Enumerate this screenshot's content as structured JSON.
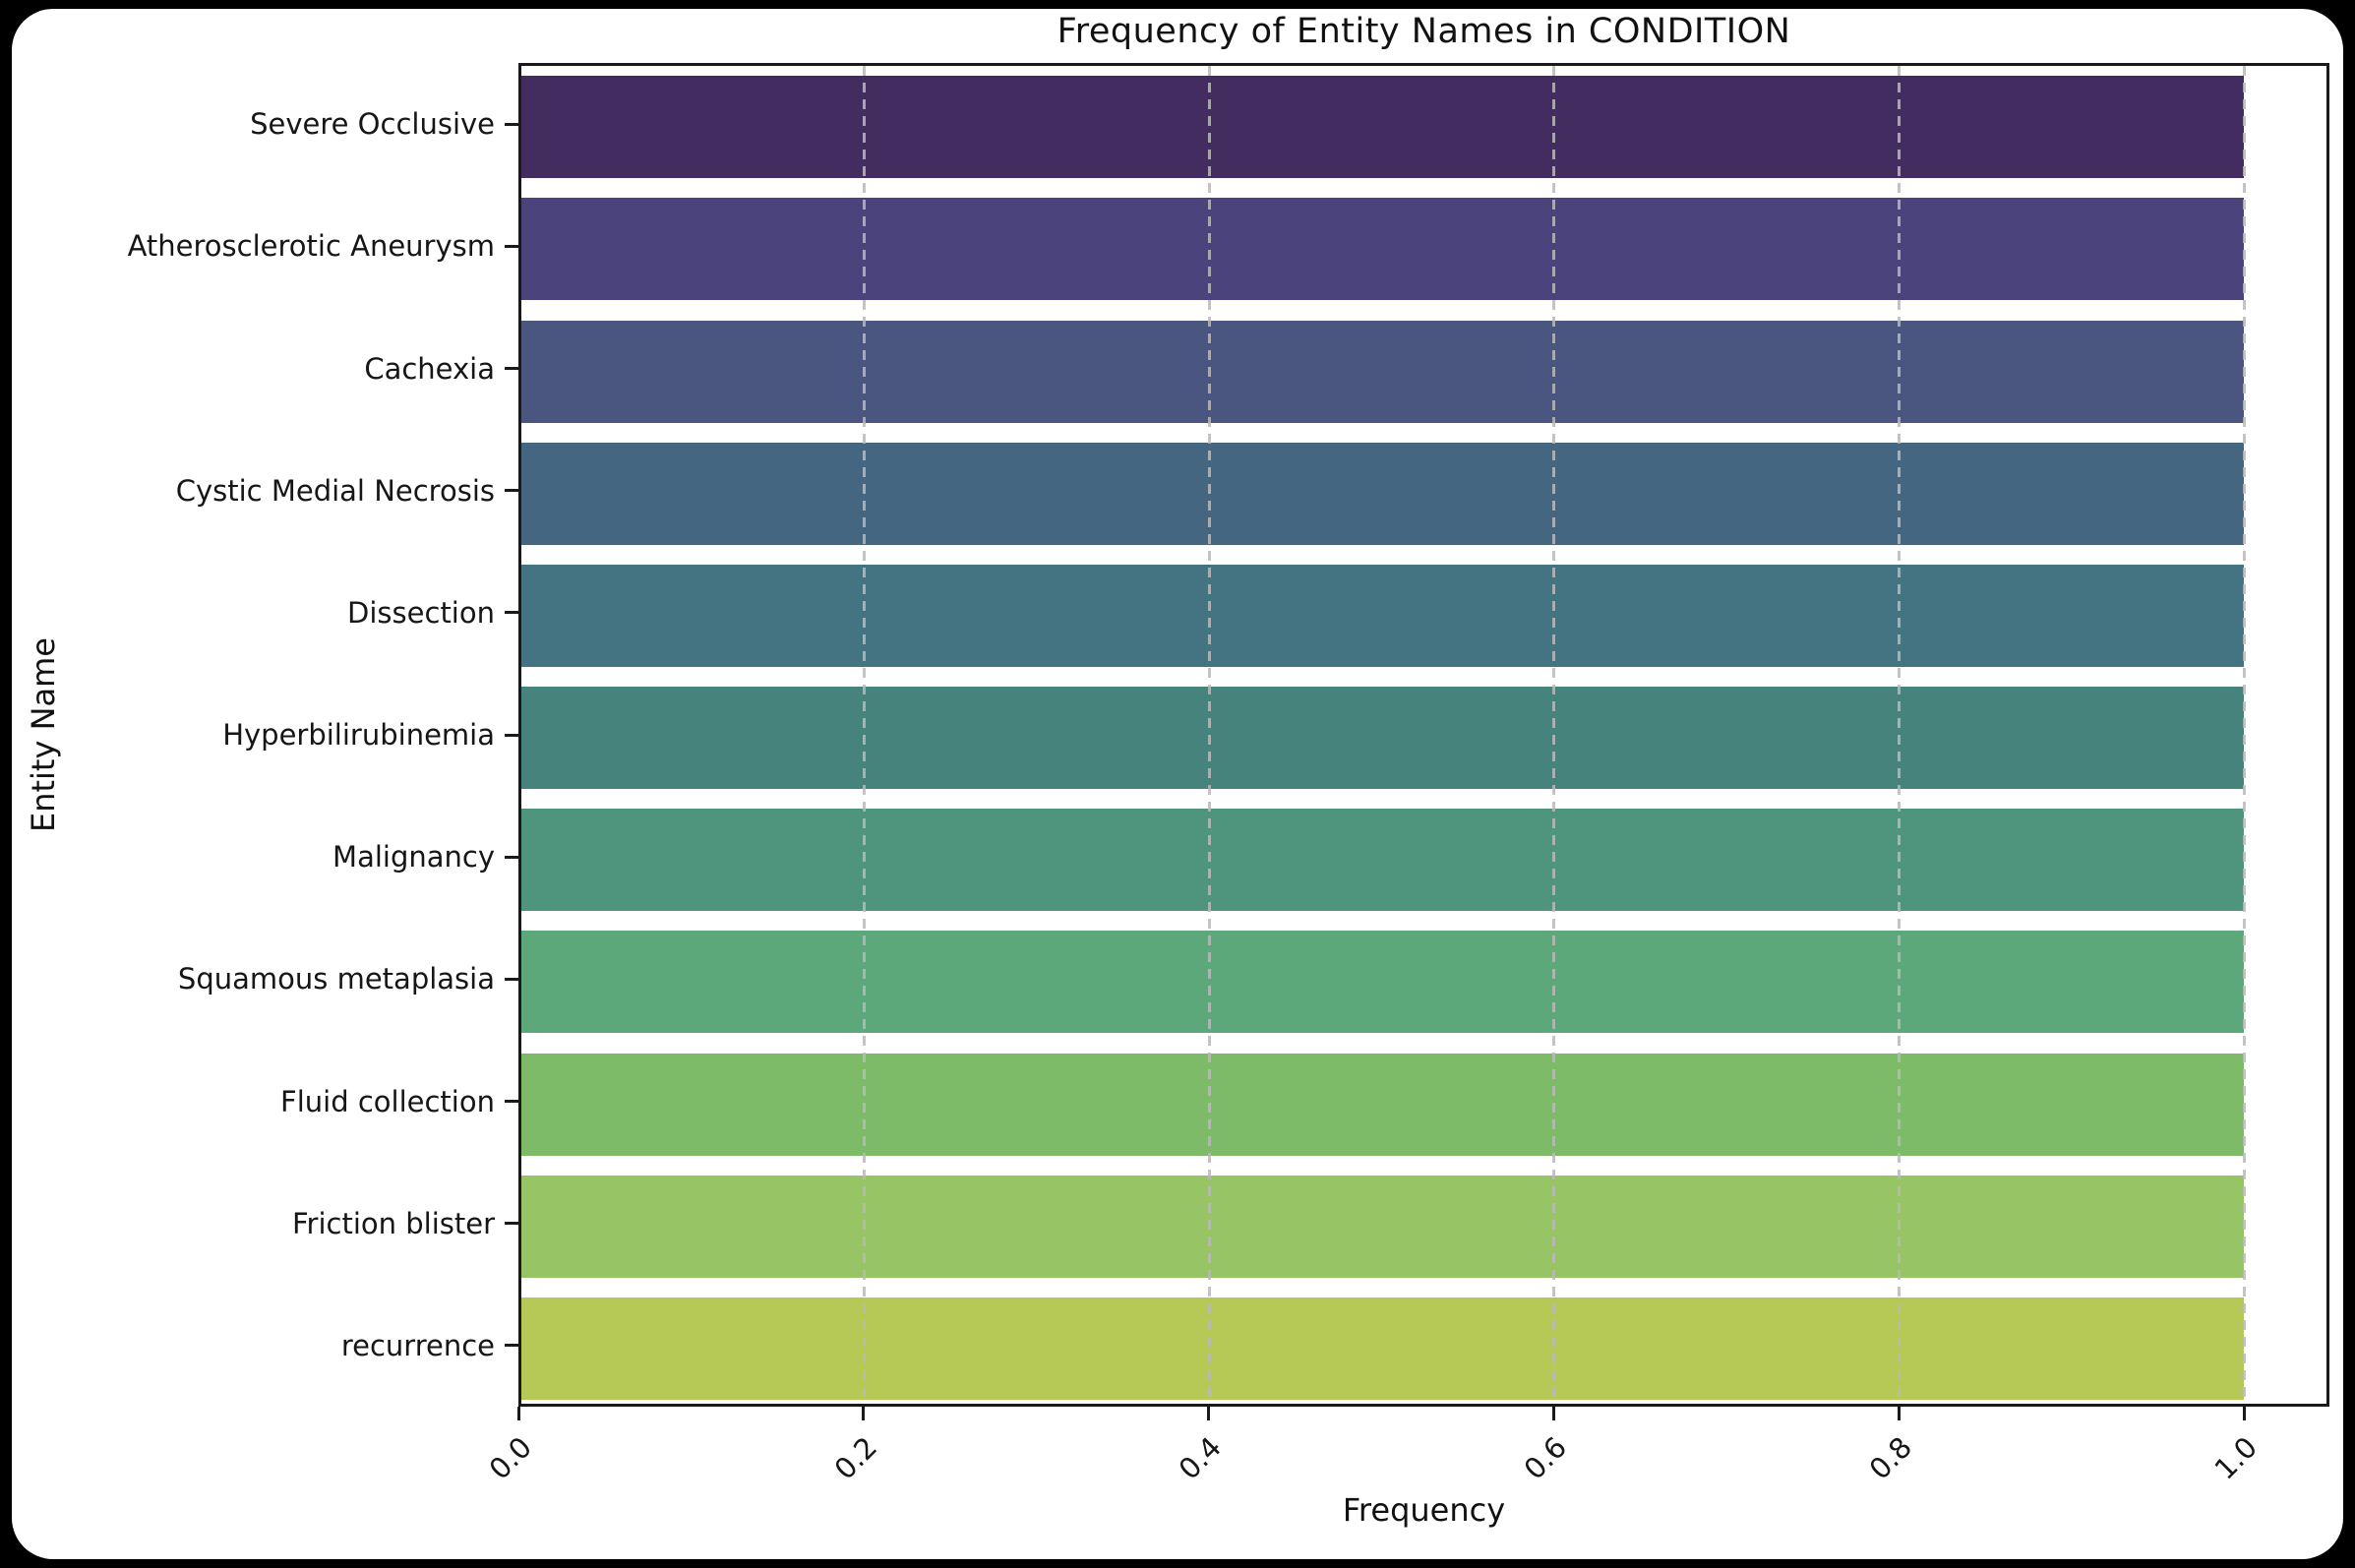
{
  "page": {
    "background_color": "#000000",
    "card_background_color": "#ffffff"
  },
  "chart_data": {
    "type": "bar",
    "orientation": "horizontal",
    "title": "Frequency of Entity Names in CONDITION",
    "xlabel": "Frequency",
    "ylabel": "Entity Name",
    "categories": [
      "Severe Occlusive",
      "Atherosclerotic Aneurysm",
      "Cachexia",
      "Cystic Medial Necrosis",
      "Dissection",
      "Hyperbilirubinemia",
      "Malignancy",
      "Squamous metaplasia",
      "Fluid collection",
      "Friction blister",
      "recurrence"
    ],
    "values": [
      1.0,
      1.0,
      1.0,
      1.0,
      1.0,
      1.0,
      1.0,
      1.0,
      1.0,
      1.0,
      1.0
    ],
    "bar_colors": [
      "#432c60",
      "#4b437c",
      "#4a567f",
      "#456680",
      "#447481",
      "#47837d",
      "#4f947d",
      "#5ca87a",
      "#7dbb69",
      "#97c566",
      "#b6c956"
    ],
    "palette": "viridis-desaturated",
    "xlim": [
      0.0,
      1.05
    ],
    "xticks": [
      "0.0",
      "0.2",
      "0.4",
      "0.6",
      "0.8",
      "1.0"
    ],
    "xtick_values": [
      0.0,
      0.2,
      0.4,
      0.6,
      0.8,
      1.0
    ],
    "grid": {
      "visible": true,
      "axis": "x",
      "style": "dashed",
      "color": "#b9b9b9",
      "gridline_values": [
        0.2,
        0.4,
        0.6,
        0.8,
        1.0
      ]
    },
    "legend": "none"
  }
}
